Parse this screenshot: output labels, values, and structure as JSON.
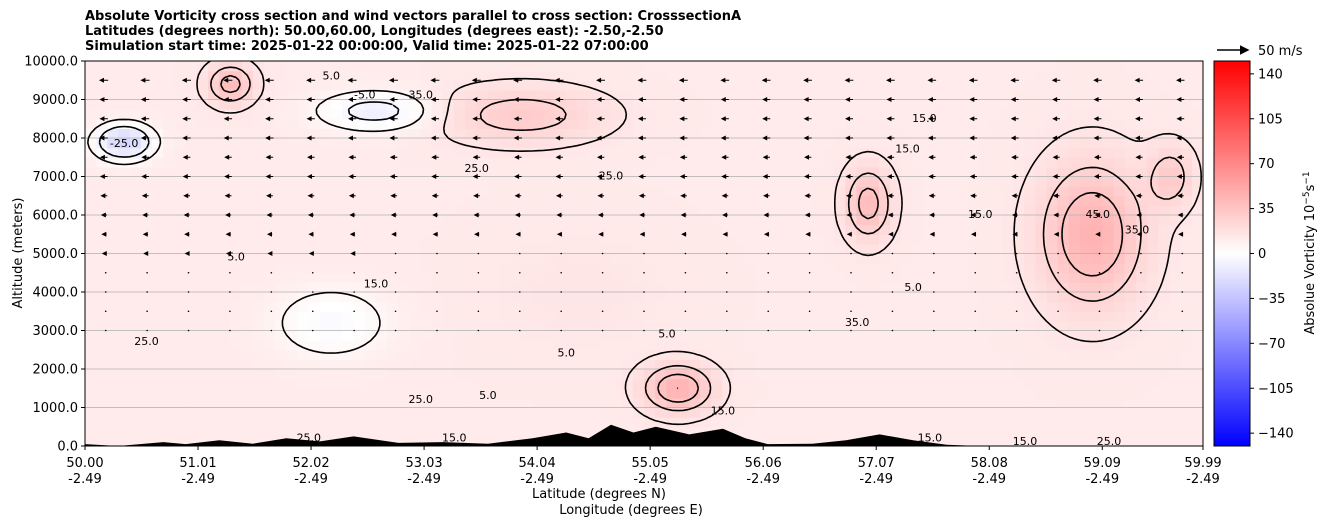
{
  "title": {
    "line1": "Absolute Vorticity cross section and wind vectors parallel to cross section: CrosssectionA",
    "line2": "Latitudes (degrees north): 50.00,60.00, Longitudes (degrees east): -2.50,-2.50",
    "line3": "Simulation start time: 2025-01-22 00:00:00, Valid time: 2025-01-22 07:00:00"
  },
  "colors": {
    "positive": "#ff0000",
    "negative": "#0000ff",
    "neutral": "#ffffff",
    "contour": "#000000",
    "terrain": "#000000"
  },
  "chart_data": {
    "type": "heatmap",
    "ylabel": "Altitude (meters)",
    "xlabel_line1": "Latitude (degrees N)",
    "xlabel_line2": "Longitude (degrees E)",
    "xlim": [
      50.0,
      59.99
    ],
    "ylim": [
      0,
      10000
    ],
    "grid": "horizontal",
    "x_ticks": [
      {
        "lat": "50.00",
        "lon": "-2.49",
        "value": 50.0
      },
      {
        "lat": "51.01",
        "lon": "-2.49",
        "value": 51.01
      },
      {
        "lat": "52.02",
        "lon": "-2.49",
        "value": 52.02
      },
      {
        "lat": "53.03",
        "lon": "-2.49",
        "value": 53.03
      },
      {
        "lat": "54.04",
        "lon": "-2.49",
        "value": 54.04
      },
      {
        "lat": "55.05",
        "lon": "-2.49",
        "value": 55.05
      },
      {
        "lat": "56.06",
        "lon": "-2.49",
        "value": 56.06
      },
      {
        "lat": "57.07",
        "lon": "-2.49",
        "value": 57.07
      },
      {
        "lat": "58.08",
        "lon": "-2.49",
        "value": 58.08
      },
      {
        "lat": "59.09",
        "lon": "-2.49",
        "value": 59.09
      },
      {
        "lat": "59.99",
        "lon": "-2.49",
        "value": 59.99
      }
    ],
    "y_ticks": [
      {
        "label": "0.0",
        "value": 0
      },
      {
        "label": "1000.0",
        "value": 1000
      },
      {
        "label": "2000.0",
        "value": 2000
      },
      {
        "label": "3000.0",
        "value": 3000
      },
      {
        "label": "4000.0",
        "value": 4000
      },
      {
        "label": "5000.0",
        "value": 5000
      },
      {
        "label": "6000.0",
        "value": 6000
      },
      {
        "label": "7000.0",
        "value": 7000
      },
      {
        "label": "8000.0",
        "value": 8000
      },
      {
        "label": "9000.0",
        "value": 9000
      },
      {
        "label": "10000.0",
        "value": 10000
      }
    ],
    "colorbar": {
      "label": "Absolue Vorticity 10",
      "label_exp": "−5",
      "label_unit": "s",
      "label_unit_exp": "−1",
      "range": [
        -150,
        150
      ],
      "ticks": [
        {
          "label": "140",
          "value": 140
        },
        {
          "label": "105",
          "value": 105
        },
        {
          "label": "70",
          "value": 70
        },
        {
          "label": "35",
          "value": 35
        },
        {
          "label": "0",
          "value": 0
        },
        {
          "label": "−35",
          "value": -35
        },
        {
          "label": "−70",
          "value": -70
        },
        {
          "label": "−105",
          "value": -105
        },
        {
          "label": "−140",
          "value": -140
        }
      ]
    },
    "quiver_key": {
      "label": "50 m/s",
      "value": 50
    },
    "contour_levels": [
      -25,
      -5,
      5,
      15,
      25,
      35,
      45
    ],
    "vorticity_field": {
      "base": 12,
      "features": [
        {
          "lat": 50.35,
          "alt": 7900,
          "value": -25,
          "spread_lat": 0.25,
          "spread_alt": 450
        },
        {
          "lat": 52.6,
          "alt": 8700,
          "value": -10,
          "spread_lat": 0.5,
          "spread_alt": 500
        },
        {
          "lat": 52.2,
          "alt": 3200,
          "value": -3,
          "spread_lat": 0.5,
          "spread_alt": 900
        },
        {
          "lat": 53.9,
          "alt": 8600,
          "value": 30,
          "spread_lat": 0.7,
          "spread_alt": 700
        },
        {
          "lat": 55.3,
          "alt": 1500,
          "value": 45,
          "spread_lat": 0.3,
          "spread_alt": 600
        },
        {
          "lat": 57.0,
          "alt": 6300,
          "value": 40,
          "spread_lat": 0.2,
          "spread_alt": 900
        },
        {
          "lat": 59.0,
          "alt": 5500,
          "value": 45,
          "spread_lat": 0.45,
          "spread_alt": 1800
        },
        {
          "lat": 59.7,
          "alt": 7000,
          "value": 30,
          "spread_lat": 0.2,
          "spread_alt": 800
        },
        {
          "lat": 51.3,
          "alt": 9400,
          "value": 40,
          "spread_lat": 0.2,
          "spread_alt": 500
        },
        {
          "lat": 54.4,
          "alt": 4000,
          "value": 15,
          "spread_lat": 0.8,
          "spread_alt": 1500
        }
      ]
    },
    "contour_labels": [
      {
        "text": "-25.0",
        "lat": 50.35,
        "alt": 7850
      },
      {
        "text": "-5.0",
        "lat": 52.5,
        "alt": 9100
      },
      {
        "text": "5.0",
        "lat": 52.2,
        "alt": 9600
      },
      {
        "text": "35.0",
        "lat": 53.0,
        "alt": 9100
      },
      {
        "text": "25.0",
        "lat": 53.5,
        "alt": 7200
      },
      {
        "text": "15.0",
        "lat": 52.6,
        "alt": 4200
      },
      {
        "text": "25.0",
        "lat": 50.55,
        "alt": 2700
      },
      {
        "text": "5.0",
        "lat": 51.35,
        "alt": 4900
      },
      {
        "text": "25.0",
        "lat": 53.0,
        "alt": 1200
      },
      {
        "text": "5.0",
        "lat": 53.6,
        "alt": 1300
      },
      {
        "text": "5.0",
        "lat": 54.3,
        "alt": 2400
      },
      {
        "text": "5.0",
        "lat": 55.2,
        "alt": 2900
      },
      {
        "text": "15.0",
        "lat": 55.7,
        "alt": 900
      },
      {
        "text": "25.0",
        "lat": 54.7,
        "alt": 7000
      },
      {
        "text": "15.0",
        "lat": 57.35,
        "alt": 7700
      },
      {
        "text": "15.0",
        "lat": 57.5,
        "alt": 8500
      },
      {
        "text": "15.0",
        "lat": 58.0,
        "alt": 6000
      },
      {
        "text": "5.0",
        "lat": 57.4,
        "alt": 4100
      },
      {
        "text": "45.0",
        "lat": 59.05,
        "alt": 6000
      },
      {
        "text": "35.0",
        "lat": 59.4,
        "alt": 5600
      },
      {
        "text": "25.0",
        "lat": 52.0,
        "alt": 200
      },
      {
        "text": "15.0",
        "lat": 53.3,
        "alt": 200
      },
      {
        "text": "15.0",
        "lat": 58.4,
        "alt": 100
      },
      {
        "text": "25.0",
        "lat": 59.15,
        "alt": 100
      },
      {
        "text": "35.0",
        "lat": 56.9,
        "alt": 3200
      },
      {
        "text": "15.0",
        "lat": 57.55,
        "alt": 200
      }
    ],
    "terrain": [
      {
        "lat": 50.0,
        "alt": 50
      },
      {
        "lat": 50.3,
        "alt": 0
      },
      {
        "lat": 50.7,
        "alt": 100
      },
      {
        "lat": 50.9,
        "alt": 50
      },
      {
        "lat": 51.2,
        "alt": 150
      },
      {
        "lat": 51.5,
        "alt": 60
      },
      {
        "lat": 51.8,
        "alt": 200
      },
      {
        "lat": 52.1,
        "alt": 120
      },
      {
        "lat": 52.4,
        "alt": 250
      },
      {
        "lat": 52.8,
        "alt": 80
      },
      {
        "lat": 53.2,
        "alt": 100
      },
      {
        "lat": 53.6,
        "alt": 60
      },
      {
        "lat": 54.0,
        "alt": 200
      },
      {
        "lat": 54.3,
        "alt": 350
      },
      {
        "lat": 54.5,
        "alt": 200
      },
      {
        "lat": 54.7,
        "alt": 550
      },
      {
        "lat": 54.9,
        "alt": 350
      },
      {
        "lat": 55.1,
        "alt": 500
      },
      {
        "lat": 55.4,
        "alt": 300
      },
      {
        "lat": 55.7,
        "alt": 450
      },
      {
        "lat": 55.9,
        "alt": 200
      },
      {
        "lat": 56.1,
        "alt": 50
      },
      {
        "lat": 56.5,
        "alt": 60
      },
      {
        "lat": 56.8,
        "alt": 150
      },
      {
        "lat": 57.1,
        "alt": 300
      },
      {
        "lat": 57.4,
        "alt": 150
      },
      {
        "lat": 57.7,
        "alt": 30
      },
      {
        "lat": 58.0,
        "alt": 0
      },
      {
        "lat": 59.99,
        "alt": 0
      }
    ],
    "wind_rows": [
      {
        "alt": 9500,
        "strength": 8
      },
      {
        "alt": 9000,
        "strength": 7
      },
      {
        "alt": 8500,
        "strength": 7
      },
      {
        "alt": 8000,
        "strength": 7
      },
      {
        "alt": 7500,
        "strength": 6
      },
      {
        "alt": 7000,
        "strength": 6
      },
      {
        "alt": 6500,
        "strength": 5
      },
      {
        "alt": 6000,
        "strength": 4
      },
      {
        "alt": 5500,
        "strength": 3
      },
      {
        "alt": 5000,
        "strength": 2
      },
      {
        "alt": 4500,
        "strength": 1
      },
      {
        "alt": 4000,
        "strength": 1
      },
      {
        "alt": 3500,
        "strength": 1
      },
      {
        "alt": 3000,
        "strength": 0
      }
    ]
  }
}
